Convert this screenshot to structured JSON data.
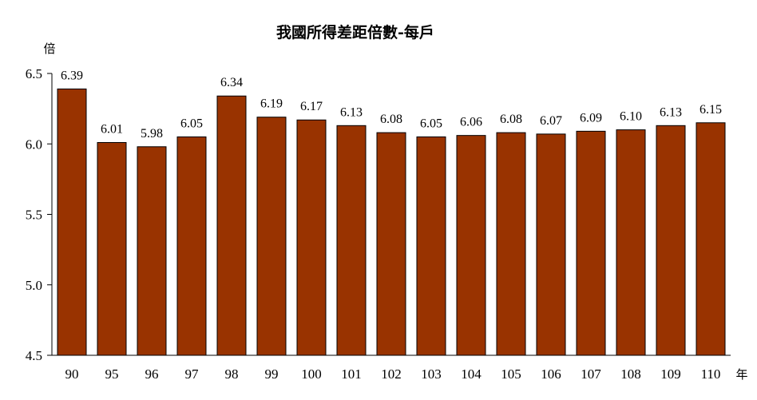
{
  "chart_data": {
    "type": "bar",
    "title": "我國所得差距倍數-每戶",
    "ylabel": "倍",
    "xlabel": "年",
    "categories": [
      "90",
      "95",
      "96",
      "97",
      "98",
      "99",
      "100",
      "101",
      "102",
      "103",
      "104",
      "105",
      "106",
      "107",
      "108",
      "109",
      "110"
    ],
    "values": [
      6.39,
      6.01,
      5.98,
      6.05,
      6.34,
      6.19,
      6.17,
      6.13,
      6.08,
      6.05,
      6.06,
      6.08,
      6.07,
      6.09,
      6.1,
      6.13,
      6.15
    ],
    "value_labels": [
      "6.39",
      "6.01",
      "5.98",
      "6.05",
      "6.34",
      "6.19",
      "6.17",
      "6.13",
      "6.08",
      "6.05",
      "6.06",
      "6.08",
      "6.07",
      "6.09",
      "6.10",
      "6.13",
      "6.15"
    ],
    "ylim": [
      4.5,
      6.5
    ],
    "yticks": [
      4.5,
      5.0,
      5.5,
      6.0,
      6.5
    ],
    "ytick_labels": [
      "4.5",
      "5.0",
      "5.5",
      "6.0",
      "6.5"
    ],
    "grid": false,
    "legend": "none",
    "bar_color": "#993300",
    "bar_edge_color": "#000000"
  }
}
